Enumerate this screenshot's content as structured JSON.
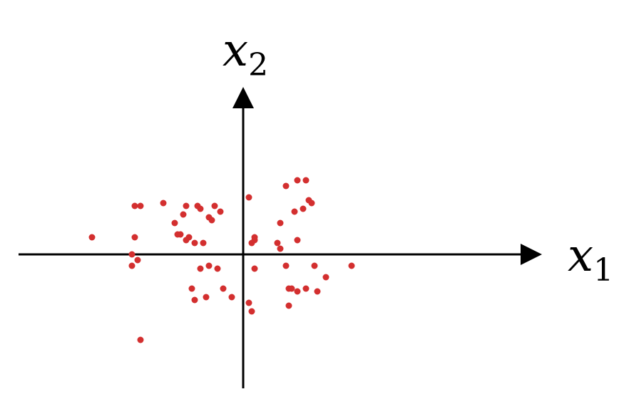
{
  "chart_data": {
    "type": "scatter",
    "title": "",
    "xlabel": "x",
    "xlabel_sub": "1",
    "ylabel": "x",
    "ylabel_sub": "2",
    "xlim": [
      -6.1,
      8.5
    ],
    "ylim": [
      -3.8,
      4.8
    ],
    "grid": false,
    "point_color": "#d32f2f",
    "series": [
      {
        "points": [
          [
            -3.8,
            1.7
          ],
          [
            -3.6,
            1.7
          ],
          [
            -1.6,
            1.7
          ],
          [
            -2.0,
            1.7
          ],
          [
            -1.5,
            1.6
          ],
          [
            -2.8,
            1.8
          ],
          [
            -1.0,
            1.7
          ],
          [
            -1.2,
            1.3
          ],
          [
            -1.1,
            1.2
          ],
          [
            -0.8,
            1.5
          ],
          [
            -2.1,
            1.4
          ],
          [
            -2.4,
            1.1
          ],
          [
            -1.9,
            0.6
          ],
          [
            -2.2,
            0.7
          ],
          [
            -2.3,
            0.7
          ],
          [
            -2.0,
            0.5
          ],
          [
            -1.7,
            0.4
          ],
          [
            -1.4,
            0.4
          ],
          [
            -3.8,
            0.6
          ],
          [
            -5.3,
            0.6
          ],
          [
            0.2,
            2.0
          ],
          [
            0.4,
            0.5
          ],
          [
            1.5,
            2.4
          ],
          [
            1.9,
            2.6
          ],
          [
            2.2,
            2.6
          ],
          [
            2.3,
            1.9
          ],
          [
            2.4,
            1.8
          ],
          [
            1.3,
            1.1
          ],
          [
            1.2,
            0.4
          ],
          [
            1.8,
            1.5
          ],
          [
            2.1,
            1.6
          ],
          [
            1.9,
            0.5
          ],
          [
            1.3,
            0.2
          ],
          [
            0.3,
            0.4
          ],
          [
            0.4,
            0.6
          ],
          [
            -3.9,
            0.0
          ],
          [
            -3.7,
            -0.2
          ],
          [
            -3.9,
            -0.4
          ],
          [
            -1.5,
            -0.5
          ],
          [
            -1.2,
            -0.4
          ],
          [
            -0.9,
            -0.5
          ],
          [
            0.4,
            -0.5
          ],
          [
            1.5,
            -0.4
          ],
          [
            1.6,
            -1.2
          ],
          [
            1.9,
            -1.3
          ],
          [
            2.2,
            -1.2
          ],
          [
            1.7,
            -1.2
          ],
          [
            -1.8,
            -1.2
          ],
          [
            -1.7,
            -1.6
          ],
          [
            -1.3,
            -1.5
          ],
          [
            -0.7,
            -1.2
          ],
          [
            -0.4,
            -1.5
          ],
          [
            0.2,
            -1.7
          ],
          [
            0.3,
            -2.0
          ],
          [
            1.6,
            -1.8
          ],
          [
            2.5,
            -0.4
          ],
          [
            -3.6,
            -3.0
          ],
          [
            3.8,
            -0.4
          ],
          [
            2.6,
            -1.3
          ],
          [
            2.9,
            -0.8
          ]
        ]
      }
    ]
  }
}
